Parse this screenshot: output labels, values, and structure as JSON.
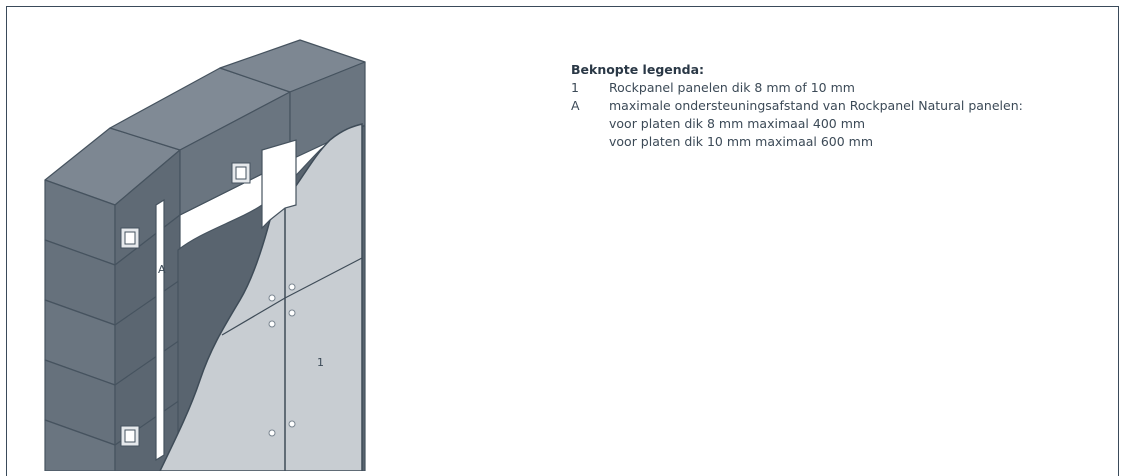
{
  "legend": {
    "title": "Beknopte legenda:",
    "items": [
      {
        "key": "1",
        "text": "Rockpanel panelen dik 8 mm of 10 mm"
      },
      {
        "key": "A",
        "text": "maximale ondersteuningsafstand van Rockpanel Natural panelen:"
      }
    ],
    "sublines": [
      "voor platen dik 8 mm maximaal 400 mm",
      "voor platen dik 10 mm maximaal 600 mm"
    ]
  },
  "drawing": {
    "label_a": "A",
    "label_1": "1"
  }
}
